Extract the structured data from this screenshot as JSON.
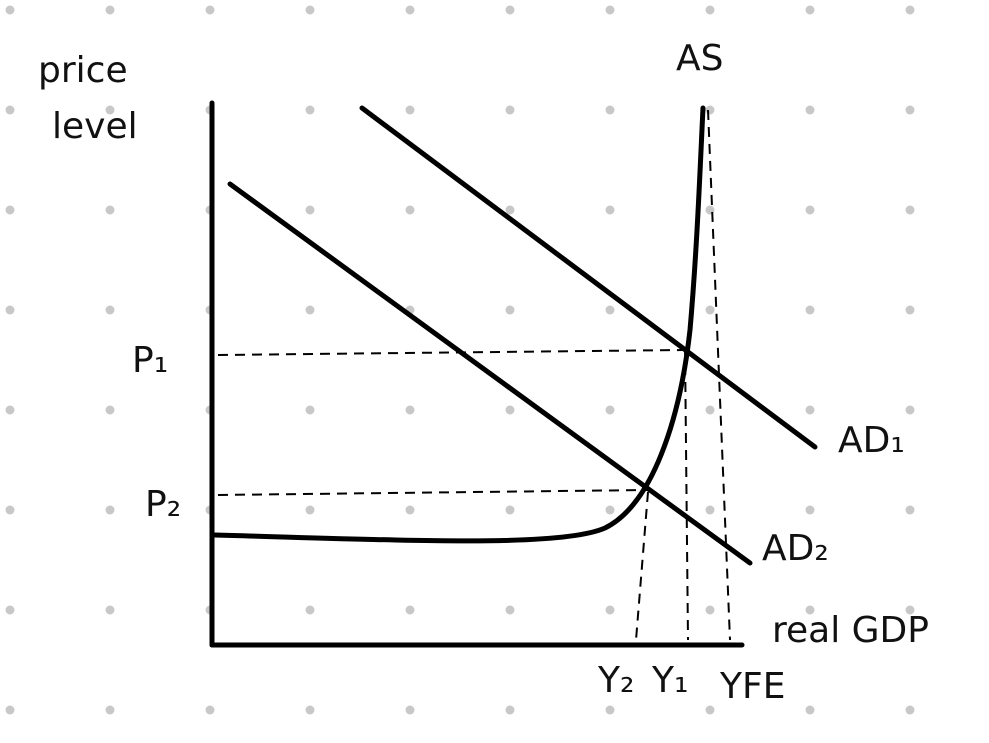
{
  "axes": {
    "y_label_line1": "price",
    "y_label_line2": "level",
    "x_label": "real GDP"
  },
  "curves": {
    "as": "AS",
    "ad1": "AD₁",
    "ad2": "AD₂"
  },
  "price_levels": {
    "p1": "P₁",
    "p2": "P₂"
  },
  "outputs": {
    "y2": "Y₂",
    "y1": "Y₁",
    "yfe": "YFE"
  }
}
